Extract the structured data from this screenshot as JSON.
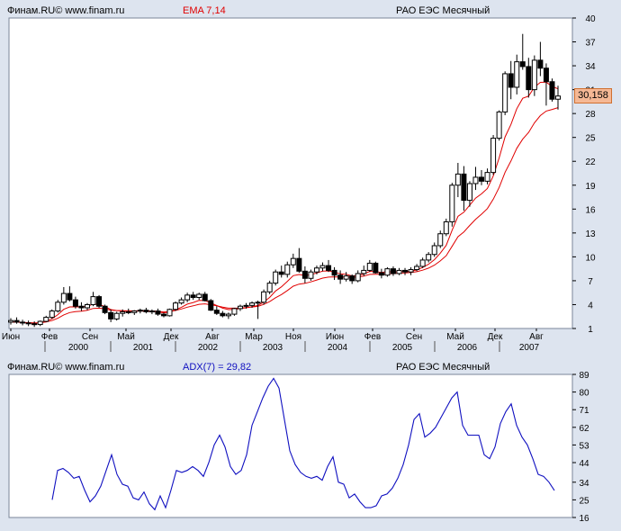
{
  "panel1": {
    "brand": "Финам.RU©",
    "site": "www.finam.ru",
    "indicator": "EMA 7,14",
    "instrument": "РАО ЕЭС Месячный",
    "price_label": "30,158"
  },
  "panel2": {
    "brand": "Финам.RU©",
    "site": "www.finam.ru",
    "indicator": "ADX(7) = 29,82",
    "instrument": "РАО ЕЭС Месячный"
  },
  "colors": {
    "background": "#dde4ef",
    "plot": "#ffffff",
    "ema": "#e00000",
    "adx": "#1010c0",
    "price_box": "#f5b895"
  },
  "chart_data": [
    {
      "type": "candlestick",
      "title": "РАО ЕЭС Месячный",
      "legend": [
        "EMA 7,14"
      ],
      "ylim": [
        1,
        40
      ],
      "y_ticks": [
        1,
        4,
        7,
        10,
        13,
        16,
        19,
        22,
        25,
        28,
        31,
        34,
        37,
        40
      ],
      "x_month_labels": [
        "Июн",
        "Фев",
        "Сен",
        "Май",
        "Дек",
        "Авг",
        "Мар",
        "Ноя",
        "Июн",
        "Фев",
        "Сен",
        "Май",
        "Дек",
        "Авг"
      ],
      "x_year_labels": [
        "2000",
        "2001",
        "2002",
        "2003",
        "2004",
        "2005",
        "2006",
        "2007"
      ],
      "last_price": 30.158,
      "candles": [
        [
          1.8,
          2.3,
          1.5,
          2.0
        ],
        [
          2.0,
          2.4,
          1.6,
          1.8
        ],
        [
          1.8,
          2.1,
          1.4,
          1.7
        ],
        [
          1.7,
          2.0,
          1.3,
          1.6
        ],
        [
          1.6,
          1.9,
          1.2,
          1.5
        ],
        [
          1.5,
          2.0,
          1.3,
          1.9
        ],
        [
          1.9,
          2.6,
          1.8,
          2.4
        ],
        [
          2.4,
          3.4,
          2.2,
          3.2
        ],
        [
          3.2,
          4.6,
          3.0,
          4.3
        ],
        [
          4.3,
          6.2,
          4.0,
          5.4
        ],
        [
          5.4,
          6.3,
          4.4,
          4.6
        ],
        [
          4.6,
          5.0,
          3.5,
          3.8
        ],
        [
          3.8,
          4.3,
          3.2,
          3.6
        ],
        [
          3.6,
          4.2,
          3.3,
          4.0
        ],
        [
          4.0,
          5.6,
          3.8,
          5.0
        ],
        [
          5.0,
          5.2,
          3.6,
          3.8
        ],
        [
          3.8,
          4.0,
          2.8,
          3.0
        ],
        [
          3.0,
          3.4,
          1.8,
          2.2
        ],
        [
          2.2,
          3.1,
          2.0,
          2.9
        ],
        [
          2.9,
          3.4,
          2.5,
          3.1
        ],
        [
          3.1,
          3.5,
          2.8,
          3.0
        ],
        [
          3.0,
          3.3,
          2.7,
          3.2
        ],
        [
          3.2,
          3.5,
          2.9,
          3.3
        ],
        [
          3.3,
          3.6,
          2.9,
          3.1
        ],
        [
          3.1,
          3.4,
          2.8,
          3.2
        ],
        [
          3.2,
          3.5,
          2.6,
          2.8
        ],
        [
          2.8,
          3.0,
          2.4,
          2.6
        ],
        [
          2.6,
          3.5,
          2.5,
          3.4
        ],
        [
          3.4,
          4.4,
          3.2,
          4.2
        ],
        [
          4.2,
          4.9,
          4.0,
          4.6
        ],
        [
          4.6,
          5.5,
          4.3,
          5.2
        ],
        [
          5.2,
          5.6,
          4.6,
          4.9
        ],
        [
          4.9,
          5.5,
          4.6,
          5.3
        ],
        [
          5.3,
          5.6,
          4.4,
          4.5
        ],
        [
          4.5,
          4.7,
          3.2,
          3.3
        ],
        [
          3.3,
          3.8,
          2.7,
          2.9
        ],
        [
          2.9,
          3.2,
          2.4,
          2.6
        ],
        [
          2.6,
          3.0,
          2.2,
          2.8
        ],
        [
          2.8,
          3.6,
          2.6,
          3.5
        ],
        [
          3.5,
          4.0,
          3.2,
          3.8
        ],
        [
          3.8,
          4.2,
          3.5,
          3.9
        ],
        [
          3.9,
          4.4,
          3.6,
          4.2
        ],
        [
          4.2,
          4.5,
          2.2,
          4.3
        ],
        [
          4.3,
          5.9,
          4.0,
          5.6
        ],
        [
          5.6,
          7.0,
          5.3,
          6.7
        ],
        [
          6.7,
          8.4,
          6.4,
          8.1
        ],
        [
          8.1,
          8.9,
          7.4,
          7.8
        ],
        [
          7.8,
          9.4,
          7.4,
          9.0
        ],
        [
          9.0,
          10.4,
          8.6,
          9.8
        ],
        [
          9.8,
          11.1,
          8.0,
          8.2
        ],
        [
          8.2,
          8.8,
          6.7,
          7.3
        ],
        [
          7.3,
          8.4,
          7.0,
          8.1
        ],
        [
          8.1,
          8.9,
          7.8,
          8.6
        ],
        [
          8.6,
          9.3,
          8.2,
          8.9
        ],
        [
          8.9,
          9.6,
          8.1,
          8.3
        ],
        [
          8.3,
          8.7,
          7.1,
          7.7
        ],
        [
          7.7,
          8.3,
          6.6,
          7.2
        ],
        [
          7.2,
          8.1,
          6.9,
          7.6
        ],
        [
          7.6,
          7.8,
          6.6,
          7.0
        ],
        [
          7.0,
          8.3,
          6.8,
          7.9
        ],
        [
          7.9,
          8.9,
          7.6,
          8.3
        ],
        [
          8.3,
          9.6,
          8.1,
          9.2
        ],
        [
          9.2,
          9.4,
          7.9,
          8.0
        ],
        [
          8.0,
          8.5,
          7.3,
          7.7
        ],
        [
          7.7,
          8.7,
          7.5,
          8.5
        ],
        [
          8.5,
          8.8,
          7.6,
          7.9
        ],
        [
          7.9,
          8.6,
          7.7,
          8.3
        ],
        [
          8.3,
          8.6,
          7.7,
          8.1
        ],
        [
          8.1,
          8.7,
          7.7,
          8.4
        ],
        [
          8.4,
          9.1,
          8.2,
          8.8
        ],
        [
          8.8,
          9.9,
          8.6,
          9.6
        ],
        [
          9.6,
          10.6,
          9.3,
          10.3
        ],
        [
          10.3,
          11.8,
          10.0,
          11.4
        ],
        [
          11.4,
          13.3,
          11.1,
          12.9
        ],
        [
          12.9,
          14.8,
          12.6,
          14.4
        ],
        [
          14.4,
          19.3,
          13.8,
          19.0
        ],
        [
          19.0,
          21.8,
          17.5,
          20.4
        ],
        [
          20.4,
          21.4,
          15.8,
          17.1
        ],
        [
          17.1,
          19.5,
          16.3,
          19.2
        ],
        [
          19.2,
          21.3,
          18.4,
          20.0
        ],
        [
          20.0,
          20.9,
          19.0,
          19.5
        ],
        [
          19.5,
          21.1,
          19.1,
          20.6
        ],
        [
          20.6,
          25.3,
          20.3,
          24.9
        ],
        [
          24.9,
          28.4,
          24.6,
          28.2
        ],
        [
          28.2,
          33.3,
          27.8,
          33.0
        ],
        [
          33.0,
          34.6,
          29.8,
          31.3
        ],
        [
          31.3,
          35.4,
          30.4,
          34.5
        ],
        [
          34.5,
          38.0,
          33.5,
          33.9
        ],
        [
          33.9,
          35.0,
          30.0,
          31.0
        ],
        [
          31.0,
          35.3,
          30.2,
          34.7
        ],
        [
          34.7,
          37.0,
          32.7,
          33.7
        ],
        [
          33.7,
          34.3,
          29.0,
          32.0
        ],
        [
          32.0,
          32.4,
          29.5,
          29.8
        ],
        [
          29.8,
          31.5,
          28.5,
          30.2
        ]
      ],
      "ema_fast": [
        1.8,
        1.8,
        1.75,
        1.71,
        1.66,
        1.72,
        1.9,
        2.22,
        2.74,
        3.41,
        3.71,
        3.73,
        3.7,
        3.77,
        4.08,
        4.01,
        3.76,
        3.37,
        3.25,
        3.22,
        3.16,
        3.17,
        3.2,
        3.18,
        3.18,
        3.09,
        2.97,
        3.08,
        3.36,
        3.67,
        4.06,
        4.27,
        4.53,
        4.52,
        4.21,
        3.88,
        3.56,
        3.37,
        3.4,
        3.5,
        3.6,
        3.75,
        3.89,
        4.32,
        4.91,
        5.71,
        6.23,
        6.92,
        7.64,
        7.78,
        7.66,
        7.77,
        7.97,
        8.2,
        8.23,
        8.09,
        7.86,
        7.8,
        7.6,
        7.68,
        7.84,
        8.18,
        8.13,
        8.03,
        8.15,
        8.09,
        8.15,
        8.14,
        8.2,
        8.35,
        8.66,
        9.07,
        9.65,
        10.46,
        11.44,
        13.33,
        15.1,
        15.6,
        16.5,
        17.38,
        17.91,
        18.58,
        20.16,
        22.42,
        25.07,
        26.63,
        28.6,
        29.92,
        30.19,
        31.32,
        31.92,
        31.94,
        31.41,
        31.1
      ],
      "ema_slow": [
        1.8,
        1.8,
        1.77,
        1.73,
        1.7,
        1.72,
        1.81,
        1.99,
        2.29,
        2.71,
        3.0,
        3.11,
        3.17,
        3.29,
        3.52,
        3.56,
        3.48,
        3.31,
        3.26,
        3.24,
        3.21,
        3.21,
        3.22,
        3.2,
        3.2,
        3.15,
        3.08,
        3.12,
        3.27,
        3.45,
        3.68,
        3.85,
        4.04,
        4.1,
        3.99,
        3.85,
        3.68,
        3.56,
        3.55,
        3.58,
        3.62,
        3.7,
        3.78,
        4.03,
        4.38,
        4.87,
        5.26,
        5.77,
        6.31,
        6.57,
        6.67,
        6.86,
        7.09,
        7.33,
        7.46,
        7.49,
        7.45,
        7.47,
        7.41,
        7.47,
        7.58,
        7.79,
        7.82,
        7.8,
        7.89,
        7.89,
        7.95,
        7.97,
        8.03,
        8.13,
        8.33,
        8.59,
        8.96,
        9.49,
        10.14,
        11.32,
        12.53,
        13.13,
        13.94,
        14.72,
        15.36,
        16.06,
        17.24,
        18.71,
        20.62,
        22.04,
        23.63,
        24.79,
        25.62,
        26.83,
        27.75,
        28.31,
        28.51,
        28.74
      ]
    },
    {
      "type": "line",
      "title": "РАО ЕЭС Месячный",
      "series": [
        {
          "name": "ADX(7) = 29,82",
          "values": [
            25,
            40,
            41,
            39,
            36,
            37,
            30,
            24,
            27,
            32,
            40,
            48,
            38,
            33,
            32,
            26,
            25,
            29,
            23,
            20,
            27,
            21,
            30,
            40,
            39,
            40,
            42,
            40,
            37,
            44,
            53,
            58,
            52,
            42,
            38,
            40,
            48,
            63,
            70,
            77,
            83,
            87,
            82,
            66,
            50,
            43,
            39,
            37,
            36,
            37,
            35,
            42,
            47,
            34,
            33,
            26,
            28,
            24,
            21,
            21,
            22,
            27,
            28,
            31,
            36,
            43,
            53,
            66,
            69,
            57,
            59,
            62,
            67,
            72,
            77,
            80,
            63,
            58,
            58,
            58,
            48,
            46,
            52,
            64,
            70,
            74,
            63,
            57,
            53,
            46,
            38,
            37,
            34,
            29.82
          ]
        }
      ],
      "ylim": [
        16,
        89
      ],
      "y_ticks": [
        16,
        25,
        34,
        44,
        53,
        62,
        71,
        80,
        89
      ]
    }
  ]
}
